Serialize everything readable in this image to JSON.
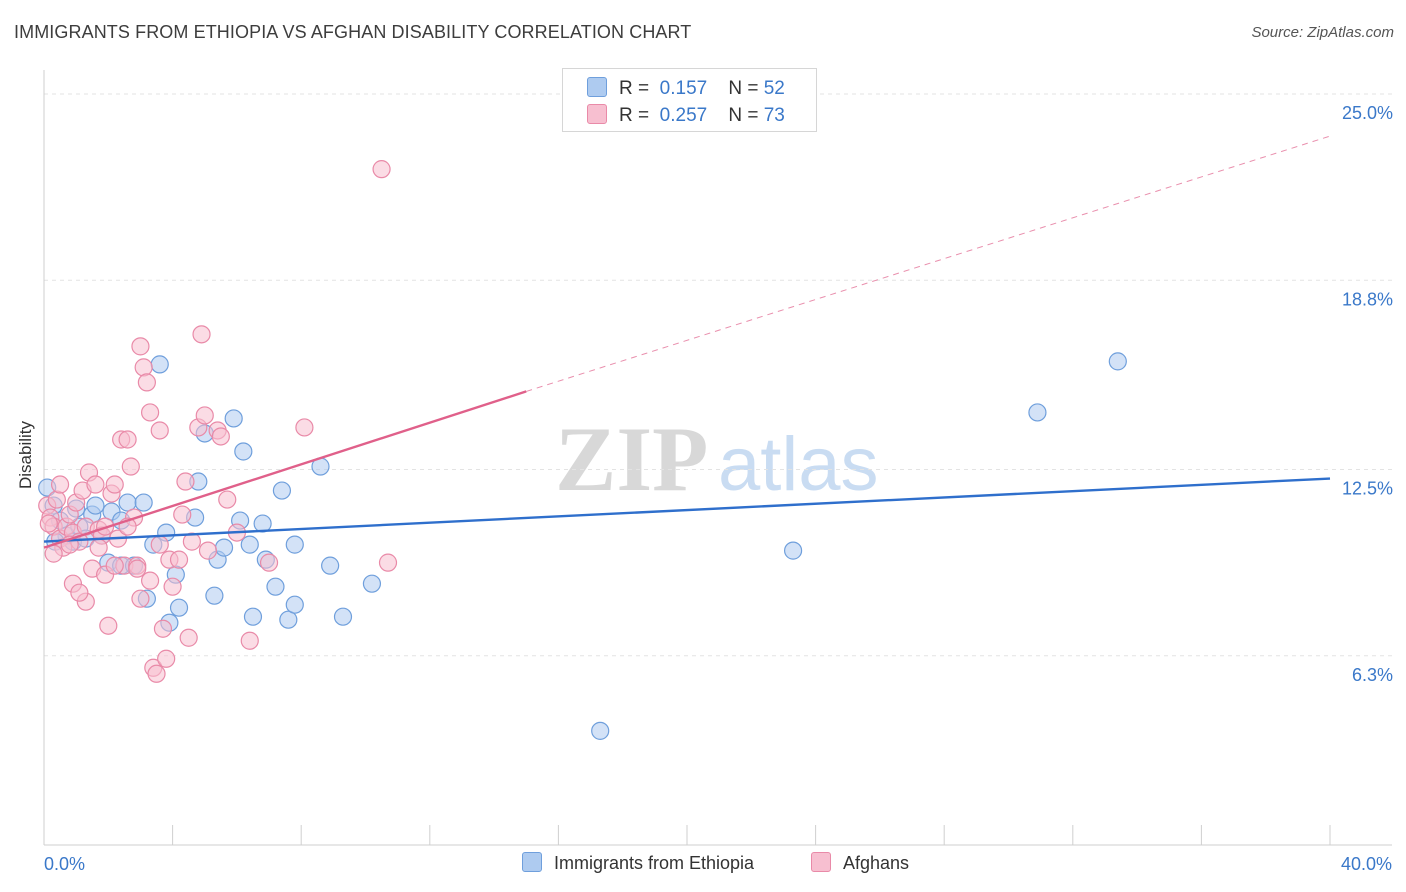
{
  "title": "IMMIGRANTS FROM ETHIOPIA VS AFGHAN DISABILITY CORRELATION CHART",
  "source": "Source: ZipAtlas.com",
  "watermark": {
    "zip": "ZIP",
    "atlas": "atlas"
  },
  "colors": {
    "blue_fill": "#aecbf0",
    "blue_stroke": "#6f9fdc",
    "blue_line": "#2f6fcc",
    "pink_fill": "#f7bfd0",
    "pink_stroke": "#e98aa8",
    "pink_line": "#e0608a",
    "axis_text": "#3a78c9",
    "grid": "#e3e3e3"
  },
  "legend": {
    "rows": [
      {
        "r_label": "R =",
        "r_value": "0.157",
        "n_label": "N =",
        "n_value": "52",
        "color": "#aecbf0",
        "border": "#6f9fdc"
      },
      {
        "r_label": "R =",
        "r_value": "0.257",
        "n_label": "N =",
        "n_value": "73",
        "color": "#f7bfd0",
        "border": "#e98aa8"
      }
    ]
  },
  "bottom_legend": [
    {
      "label": "Immigrants from Ethiopia",
      "color": "#aecbf0",
      "border": "#6f9fdc"
    },
    {
      "label": "Afghans",
      "color": "#f7bfd0",
      "border": "#e98aa8"
    }
  ],
  "chart_data": {
    "type": "scatter",
    "title": "IMMIGRANTS FROM ETHIOPIA VS AFGHAN DISABILITY CORRELATION CHART",
    "xlabel": "",
    "ylabel": "Disability",
    "xlim": [
      0,
      40
    ],
    "ylim": [
      0,
      25.8
    ],
    "x_tick_labels": [
      "0.0%",
      "40.0%"
    ],
    "y_ticks": [
      {
        "value": 6.3,
        "label": "6.3%"
      },
      {
        "value": 12.5,
        "label": "12.5%"
      },
      {
        "value": 18.8,
        "label": "18.8%"
      },
      {
        "value": 25.0,
        "label": "25.0%"
      }
    ],
    "series": [
      {
        "name": "Immigrants from Ethiopia",
        "r": 0.157,
        "n": 52,
        "trend": {
          "x": [
            0,
            40
          ],
          "y": [
            10.1,
            12.2
          ],
          "dashed_to": null
        },
        "points": [
          [
            0.1,
            11.9
          ],
          [
            0.3,
            11.3
          ],
          [
            0.5,
            10.8
          ],
          [
            0.7,
            10.3
          ],
          [
            0.9,
            10.1
          ],
          [
            1.1,
            10.6
          ],
          [
            1.3,
            10.2
          ],
          [
            1.5,
            11.0
          ],
          [
            1.6,
            11.3
          ],
          [
            1.8,
            10.3
          ],
          [
            2.0,
            9.4
          ],
          [
            2.1,
            11.1
          ],
          [
            2.4,
            9.3
          ],
          [
            2.4,
            10.8
          ],
          [
            2.6,
            11.4
          ],
          [
            2.8,
            9.3
          ],
          [
            3.1,
            11.4
          ],
          [
            3.2,
            8.2
          ],
          [
            3.4,
            10.0
          ],
          [
            3.6,
            16.0
          ],
          [
            3.8,
            10.4
          ],
          [
            3.9,
            7.4
          ],
          [
            4.1,
            9.0
          ],
          [
            4.2,
            7.9
          ],
          [
            4.7,
            10.9
          ],
          [
            4.8,
            12.1
          ],
          [
            5.0,
            13.7
          ],
          [
            5.3,
            8.3
          ],
          [
            5.4,
            9.5
          ],
          [
            5.6,
            9.9
          ],
          [
            5.9,
            14.2
          ],
          [
            6.1,
            10.8
          ],
          [
            6.2,
            13.1
          ],
          [
            6.4,
            10.0
          ],
          [
            6.5,
            7.6
          ],
          [
            6.8,
            10.7
          ],
          [
            6.9,
            9.5
          ],
          [
            7.2,
            8.6
          ],
          [
            7.4,
            11.8
          ],
          [
            7.6,
            7.5
          ],
          [
            7.8,
            8.0
          ],
          [
            7.8,
            10.0
          ],
          [
            8.6,
            12.6
          ],
          [
            8.9,
            9.3
          ],
          [
            9.3,
            7.6
          ],
          [
            10.2,
            8.7
          ],
          [
            17.3,
            3.8
          ],
          [
            23.3,
            9.8
          ],
          [
            30.9,
            14.4
          ],
          [
            33.4,
            16.1
          ],
          [
            0.35,
            10.1
          ],
          [
            1.0,
            11.2
          ]
        ]
      },
      {
        "name": "Afghans",
        "r": 0.257,
        "n": 73,
        "trend": {
          "x": [
            0,
            15
          ],
          "y": [
            9.9,
            15.1
          ],
          "dashed_to": {
            "x": 40,
            "y": 23.6
          }
        },
        "points": [
          [
            0.1,
            11.3
          ],
          [
            0.2,
            10.9
          ],
          [
            0.3,
            10.6
          ],
          [
            0.4,
            11.5
          ],
          [
            0.5,
            10.2
          ],
          [
            0.6,
            9.9
          ],
          [
            0.7,
            10.6
          ],
          [
            0.8,
            11.0
          ],
          [
            0.9,
            10.4
          ],
          [
            1.0,
            11.4
          ],
          [
            1.1,
            10.1
          ],
          [
            1.2,
            11.8
          ],
          [
            1.3,
            10.6
          ],
          [
            1.4,
            12.4
          ],
          [
            1.5,
            9.2
          ],
          [
            1.6,
            12.0
          ],
          [
            1.7,
            10.5
          ],
          [
            1.8,
            10.3
          ],
          [
            1.9,
            9.0
          ],
          [
            2.0,
            7.3
          ],
          [
            2.1,
            11.7
          ],
          [
            2.2,
            12.0
          ],
          [
            2.3,
            10.2
          ],
          [
            2.4,
            13.5
          ],
          [
            2.5,
            9.3
          ],
          [
            2.6,
            13.5
          ],
          [
            2.7,
            12.6
          ],
          [
            2.8,
            10.9
          ],
          [
            2.9,
            9.3
          ],
          [
            3.0,
            16.6
          ],
          [
            3.0,
            8.2
          ],
          [
            3.1,
            15.9
          ],
          [
            3.2,
            15.4
          ],
          [
            3.3,
            14.4
          ],
          [
            3.4,
            5.9
          ],
          [
            3.5,
            5.7
          ],
          [
            3.6,
            13.8
          ],
          [
            3.7,
            7.2
          ],
          [
            3.8,
            6.2
          ],
          [
            3.9,
            9.5
          ],
          [
            4.0,
            8.6
          ],
          [
            4.2,
            9.5
          ],
          [
            4.3,
            11.0
          ],
          [
            4.4,
            12.1
          ],
          [
            4.5,
            6.9
          ],
          [
            4.6,
            10.1
          ],
          [
            4.8,
            13.9
          ],
          [
            4.9,
            17.0
          ],
          [
            5.0,
            14.3
          ],
          [
            5.1,
            9.8
          ],
          [
            5.4,
            13.8
          ],
          [
            5.5,
            13.6
          ],
          [
            5.7,
            11.5
          ],
          [
            6.0,
            10.4
          ],
          [
            6.4,
            6.8
          ],
          [
            7.0,
            9.4
          ],
          [
            8.1,
            13.9
          ],
          [
            10.7,
            9.4
          ],
          [
            10.5,
            22.5
          ],
          [
            0.3,
            9.7
          ],
          [
            0.9,
            8.7
          ],
          [
            1.3,
            8.1
          ],
          [
            1.7,
            9.9
          ],
          [
            2.2,
            9.3
          ],
          [
            3.3,
            8.8
          ],
          [
            0.5,
            12.0
          ],
          [
            0.15,
            10.7
          ],
          [
            1.1,
            8.4
          ],
          [
            2.6,
            10.6
          ],
          [
            3.6,
            10.0
          ],
          [
            2.9,
            9.2
          ],
          [
            0.8,
            10.0
          ],
          [
            1.9,
            10.6
          ]
        ]
      }
    ]
  }
}
